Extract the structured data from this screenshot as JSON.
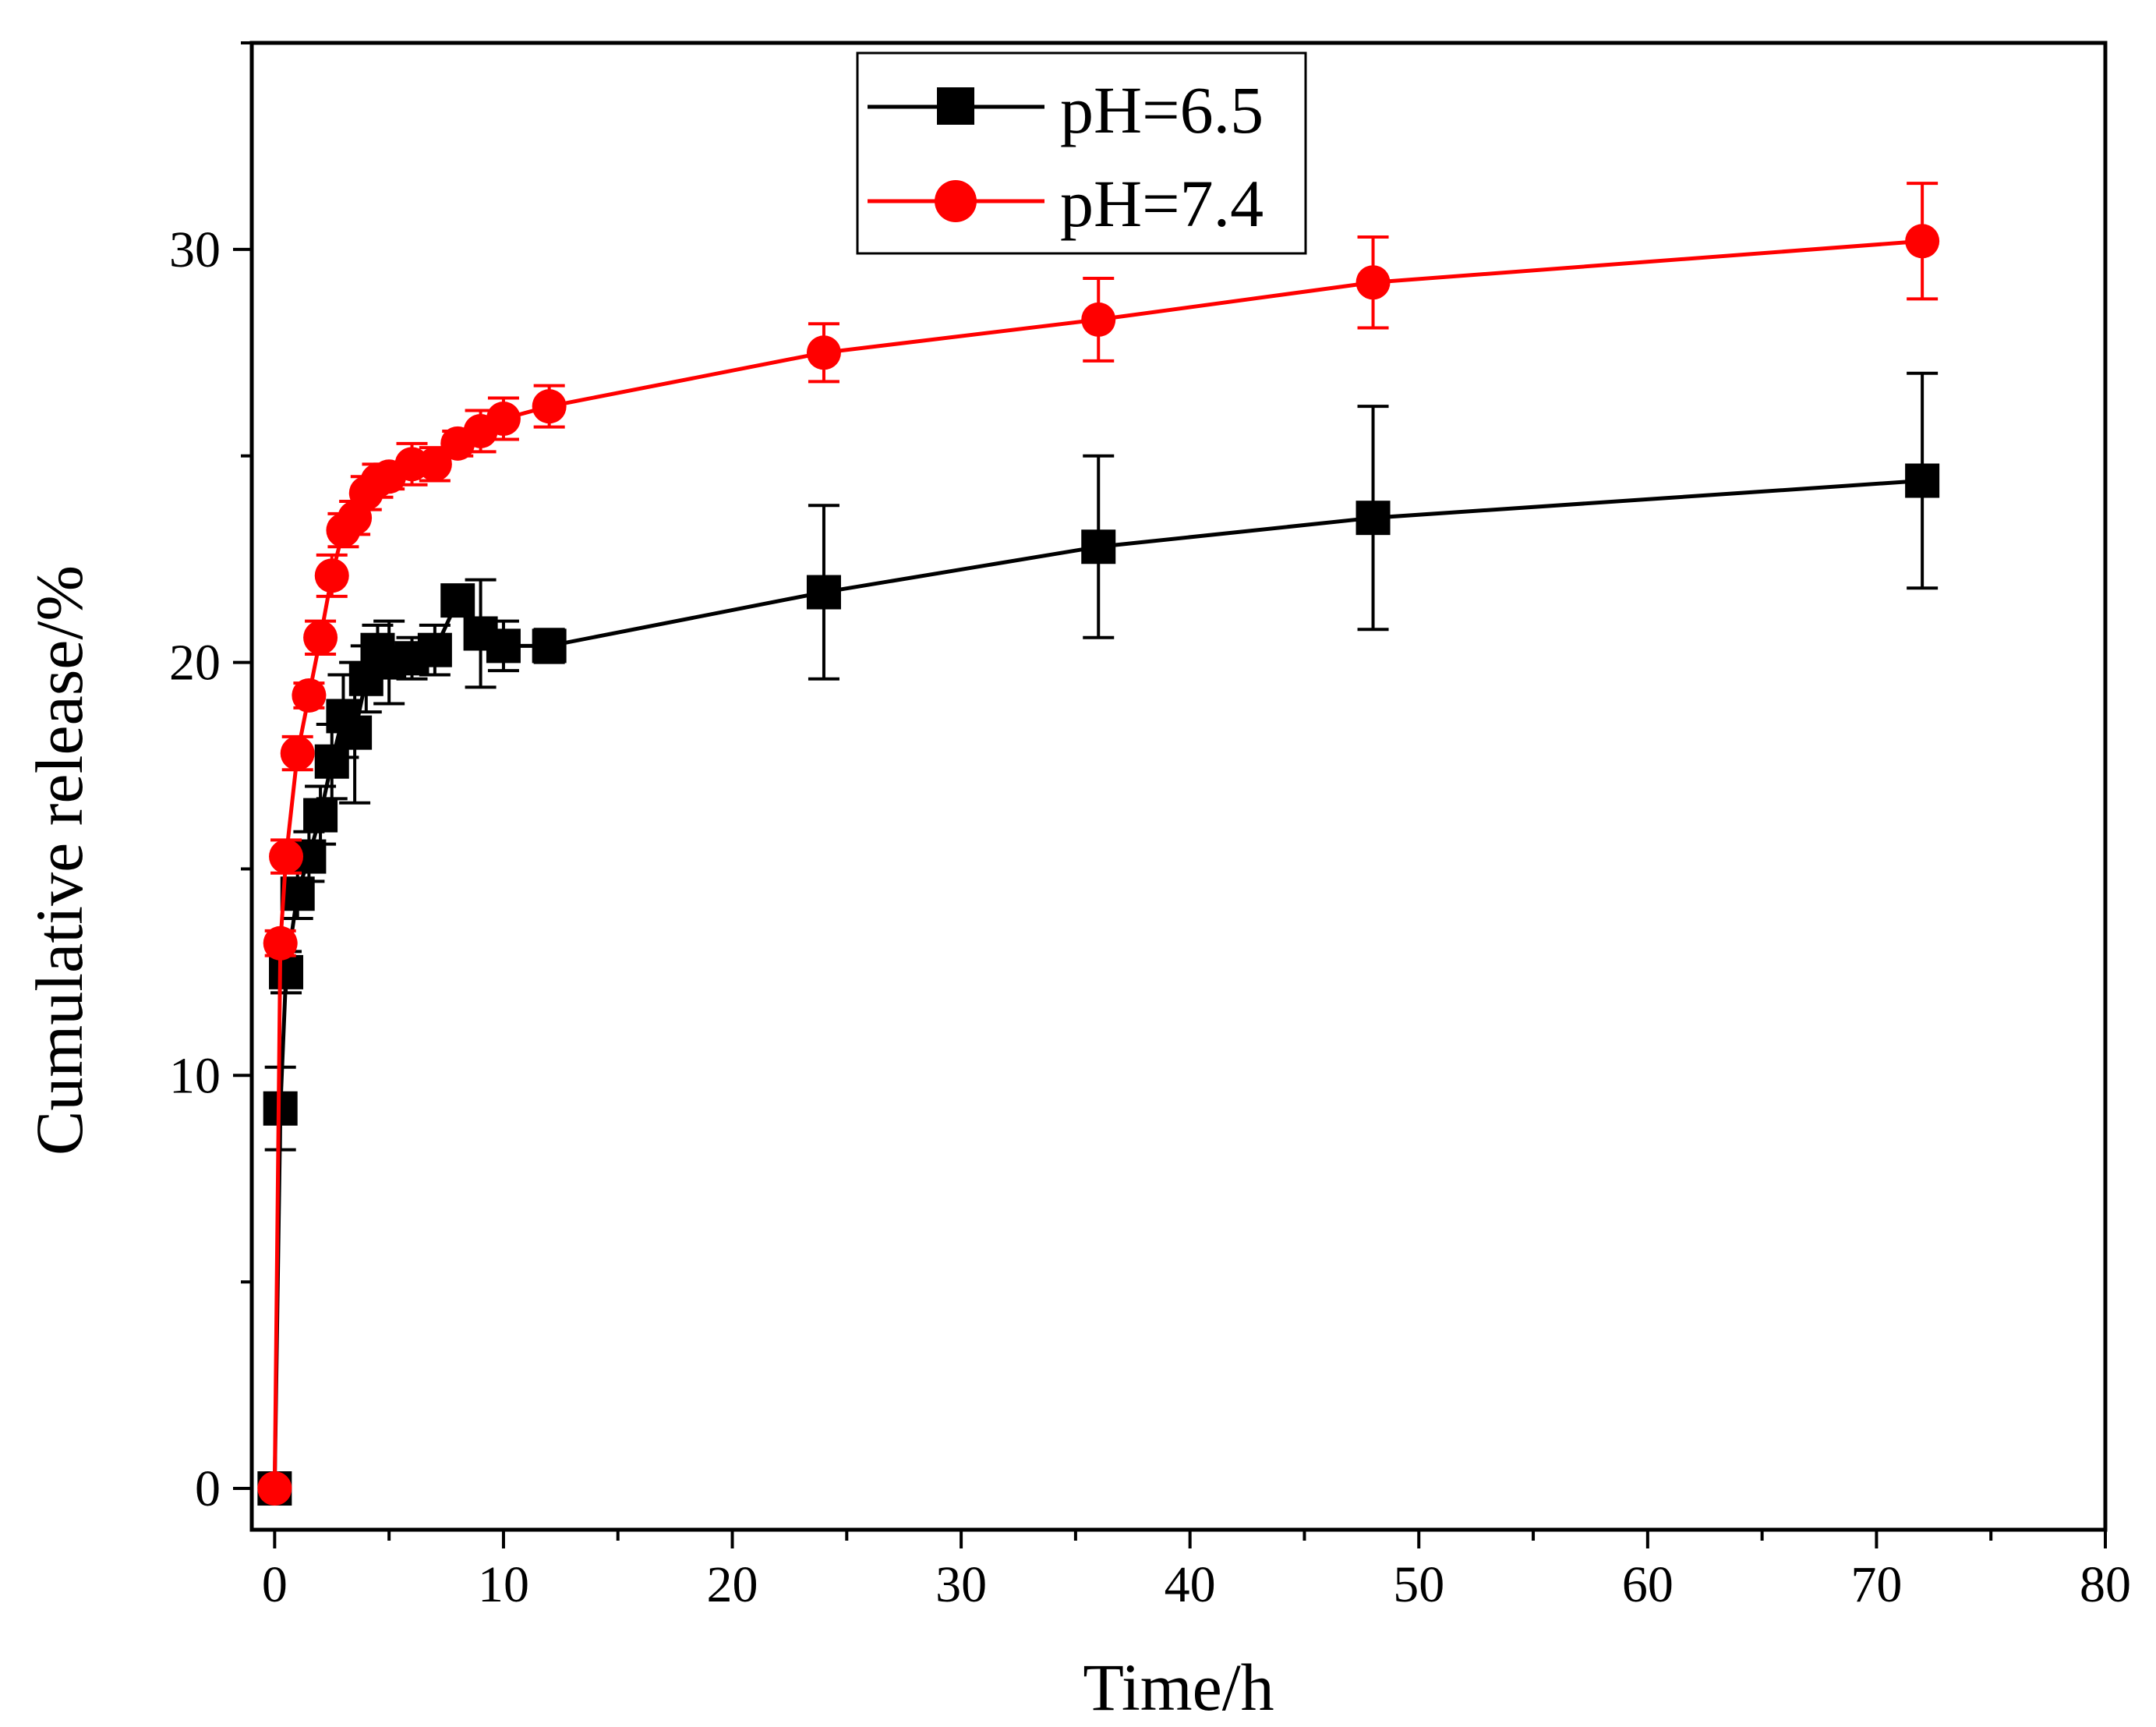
{
  "chart_data": {
    "type": "line",
    "title": "",
    "xlabel": "Time/h",
    "ylabel": "Cumulative release/%",
    "xlim": [
      -1,
      80
    ],
    "ylim": [
      -1,
      35
    ],
    "xticks": [
      0,
      10,
      20,
      30,
      40,
      50,
      60,
      70,
      80
    ],
    "yticks": [
      0,
      10,
      20,
      30
    ],
    "grid": false,
    "legend_position": "top-center",
    "series": [
      {
        "name": "pH=6.5",
        "color": "#000000",
        "marker": "square",
        "x": [
          0,
          0.25,
          0.5,
          1,
          1.5,
          2,
          2.5,
          3,
          3.5,
          4,
          4.5,
          5,
          6,
          7,
          8,
          9,
          10,
          12,
          24,
          36,
          48,
          72
        ],
        "y": [
          0,
          9.2,
          12.5,
          14.4,
          15.3,
          16.3,
          17.6,
          18.7,
          18.3,
          19.6,
          20.3,
          20.0,
          20.1,
          20.3,
          21.5,
          20.7,
          20.4,
          20.4,
          21.7,
          22.8,
          23.5,
          24.4
        ],
        "error": [
          0,
          1.0,
          0.5,
          0.6,
          0.6,
          0.7,
          0.9,
          1.0,
          1.7,
          0.8,
          0.6,
          1.0,
          0.5,
          0.6,
          0.3,
          1.3,
          0.6,
          0.4,
          2.1,
          2.2,
          2.7,
          2.6
        ]
      },
      {
        "name": "pH=7.4",
        "color": "#ff0000",
        "marker": "circle",
        "x": [
          0,
          0.25,
          0.5,
          1,
          1.5,
          2,
          2.5,
          3,
          3.5,
          4,
          4.5,
          5,
          6,
          7,
          8,
          9,
          10,
          12,
          24,
          36,
          48,
          72
        ],
        "y": [
          0,
          13.2,
          15.3,
          17.8,
          19.2,
          20.6,
          22.1,
          23.2,
          23.5,
          24.1,
          24.4,
          24.5,
          24.8,
          24.8,
          25.3,
          25.6,
          25.9,
          26.2,
          27.5,
          28.3,
          29.2,
          30.2
        ],
        "error": [
          0,
          0.3,
          0.4,
          0.4,
          0.3,
          0.4,
          0.5,
          0.4,
          0.4,
          0.4,
          0.4,
          0.3,
          0.5,
          0.4,
          0.3,
          0.5,
          0.5,
          0.5,
          0.7,
          1.0,
          1.1,
          1.4
        ]
      }
    ]
  }
}
